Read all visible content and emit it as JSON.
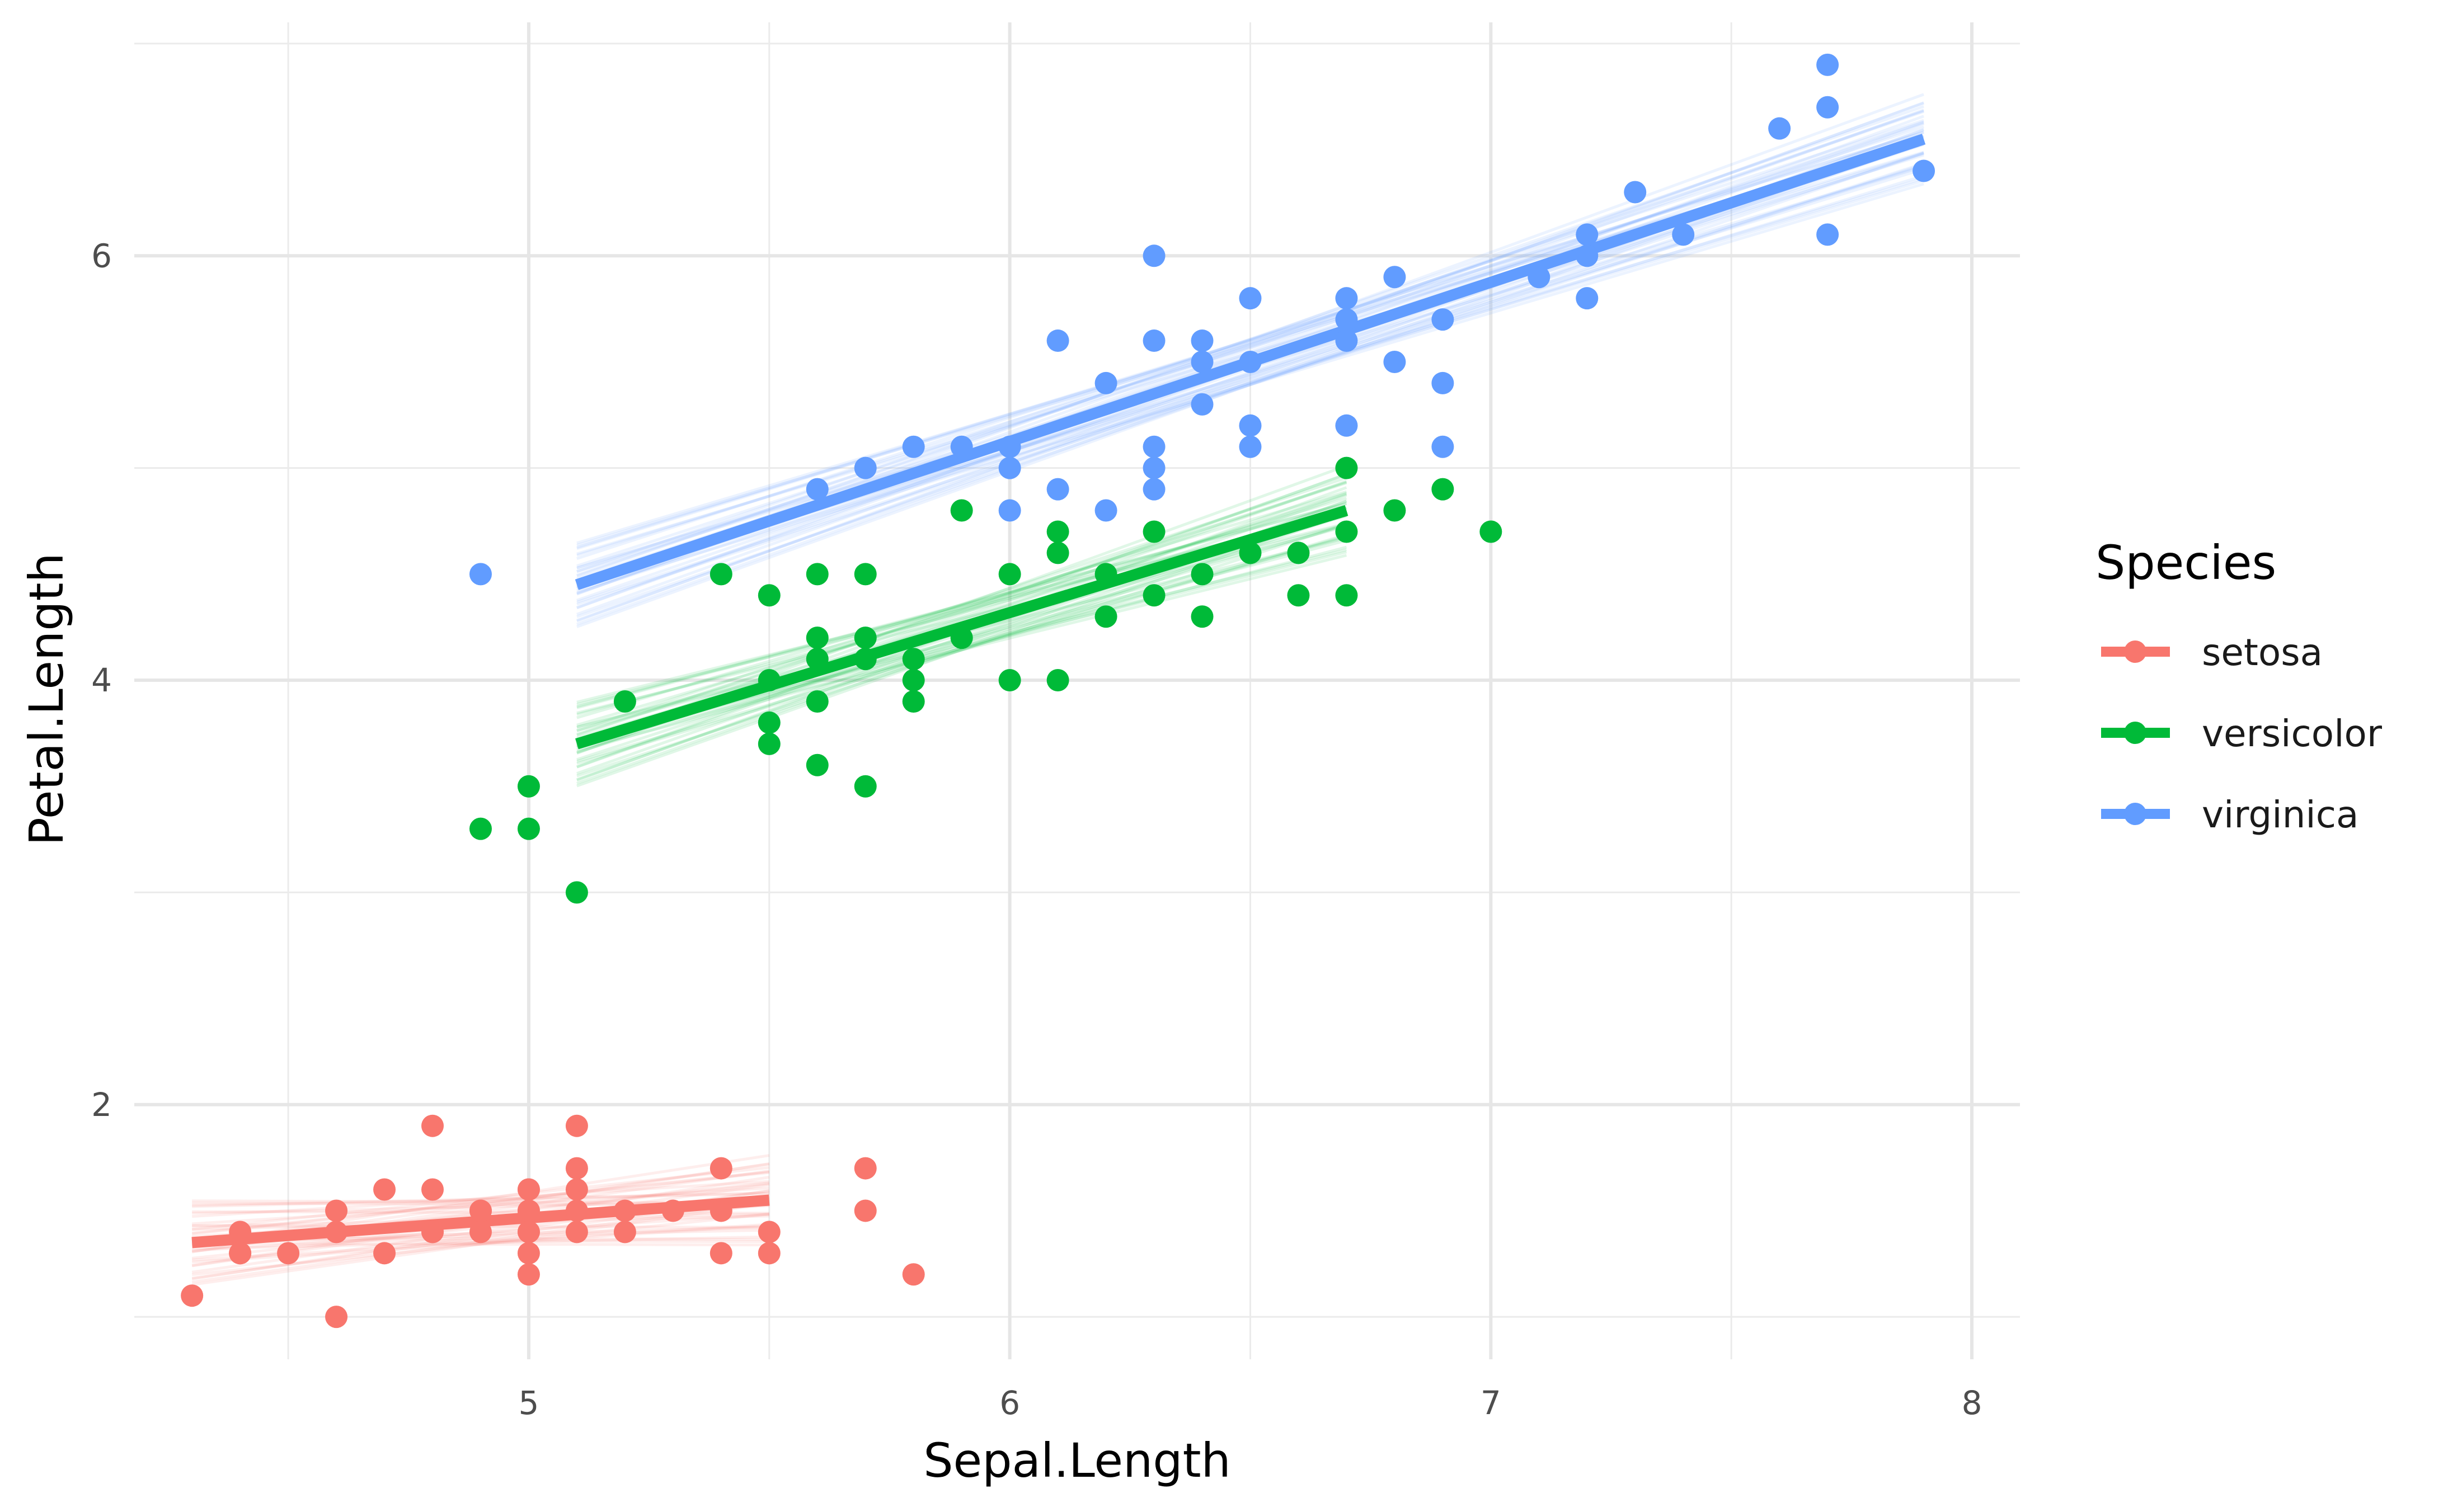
{
  "chart_data": {
    "type": "scatter",
    "xlabel": "Sepal.Length",
    "ylabel": "Petal.Length",
    "xlim": [
      4.18,
      8.1
    ],
    "ylim": [
      0.8,
      7.1
    ],
    "x_ticks": [
      5,
      6,
      7,
      8
    ],
    "x_minor_ticks": [
      4.5,
      5.5,
      6.5,
      7.5
    ],
    "y_ticks": [
      2,
      4,
      6
    ],
    "y_minor_ticks": [
      1,
      3,
      5,
      7
    ],
    "grid": true,
    "legend": {
      "title": "Species",
      "placement": "right"
    },
    "series": [
      {
        "name": "setosa",
        "color": "#F8766D",
        "fit": {
          "x": [
            4.3,
            5.5
          ],
          "y": [
            1.35,
            1.55
          ]
        },
        "points": [
          [
            4.3,
            1.1
          ],
          [
            4.4,
            1.4
          ],
          [
            4.4,
            1.3
          ],
          [
            4.4,
            1.3
          ],
          [
            4.5,
            1.3
          ],
          [
            4.6,
            1.4
          ],
          [
            4.6,
            1.5
          ],
          [
            4.6,
            1.0
          ],
          [
            4.6,
            1.4
          ],
          [
            4.7,
            1.6
          ],
          [
            4.7,
            1.3
          ],
          [
            4.8,
            1.9
          ],
          [
            4.8,
            1.6
          ],
          [
            4.8,
            1.4
          ],
          [
            4.8,
            1.4
          ],
          [
            4.9,
            1.4
          ],
          [
            4.9,
            1.5
          ],
          [
            4.9,
            1.5
          ],
          [
            5.0,
            1.6
          ],
          [
            5.0,
            1.4
          ],
          [
            5.0,
            1.5
          ],
          [
            5.0,
            1.3
          ],
          [
            5.0,
            1.2
          ],
          [
            5.0,
            1.6
          ],
          [
            5.0,
            1.4
          ],
          [
            5.0,
            1.5
          ],
          [
            5.1,
            1.9
          ],
          [
            5.1,
            1.7
          ],
          [
            5.1,
            1.6
          ],
          [
            5.1,
            1.5
          ],
          [
            5.1,
            1.4
          ],
          [
            5.2,
            1.5
          ],
          [
            5.2,
            1.4
          ],
          [
            5.3,
            1.5
          ],
          [
            5.4,
            1.7
          ],
          [
            5.4,
            1.5
          ],
          [
            5.4,
            1.3
          ],
          [
            5.5,
            1.4
          ],
          [
            5.5,
            1.3
          ],
          [
            5.7,
            1.7
          ],
          [
            5.7,
            1.5
          ],
          [
            5.8,
            1.2
          ]
        ]
      },
      {
        "name": "versicolor",
        "color": "#00BA38",
        "fit": {
          "x": [
            5.1,
            6.7
          ],
          "y": [
            3.7,
            4.8
          ]
        },
        "points": [
          [
            4.9,
            3.3
          ],
          [
            5.0,
            3.5
          ],
          [
            5.0,
            3.3
          ],
          [
            5.1,
            3.0
          ],
          [
            5.2,
            3.9
          ],
          [
            5.4,
            4.5
          ],
          [
            5.5,
            4.4
          ],
          [
            5.5,
            4.0
          ],
          [
            5.5,
            3.8
          ],
          [
            5.5,
            3.7
          ],
          [
            5.6,
            4.5
          ],
          [
            5.6,
            4.2
          ],
          [
            5.6,
            4.1
          ],
          [
            5.6,
            3.9
          ],
          [
            5.6,
            3.6
          ],
          [
            5.7,
            4.5
          ],
          [
            5.7,
            4.2
          ],
          [
            5.7,
            4.1
          ],
          [
            5.7,
            3.5
          ],
          [
            5.8,
            4.1
          ],
          [
            5.8,
            4.0
          ],
          [
            5.8,
            3.9
          ],
          [
            5.9,
            4.8
          ],
          [
            5.9,
            4.2
          ],
          [
            6.0,
            4.5
          ],
          [
            6.0,
            4.0
          ],
          [
            6.1,
            4.7
          ],
          [
            6.1,
            4.6
          ],
          [
            6.1,
            4.0
          ],
          [
            6.2,
            4.5
          ],
          [
            6.2,
            4.3
          ],
          [
            6.3,
            4.7
          ],
          [
            6.3,
            4.4
          ],
          [
            6.4,
            4.5
          ],
          [
            6.4,
            4.3
          ],
          [
            6.5,
            4.6
          ],
          [
            6.6,
            4.6
          ],
          [
            6.6,
            4.4
          ],
          [
            6.7,
            5.0
          ],
          [
            6.7,
            4.7
          ],
          [
            6.7,
            4.4
          ],
          [
            6.8,
            4.8
          ],
          [
            6.9,
            4.9
          ],
          [
            7.0,
            4.7
          ]
        ]
      },
      {
        "name": "virginica",
        "color": "#619CFF",
        "fit": {
          "x": [
            5.1,
            7.9
          ],
          "y": [
            4.45,
            6.55
          ]
        },
        "points": [
          [
            4.9,
            4.5
          ],
          [
            5.6,
            4.9
          ],
          [
            5.7,
            5.0
          ],
          [
            5.8,
            5.1
          ],
          [
            5.9,
            5.1
          ],
          [
            6.0,
            5.1
          ],
          [
            6.0,
            5.0
          ],
          [
            6.0,
            4.8
          ],
          [
            6.1,
            5.6
          ],
          [
            6.1,
            4.9
          ],
          [
            6.2,
            5.4
          ],
          [
            6.2,
            4.8
          ],
          [
            6.3,
            6.0
          ],
          [
            6.3,
            5.6
          ],
          [
            6.3,
            5.1
          ],
          [
            6.3,
            5.0
          ],
          [
            6.3,
            4.9
          ],
          [
            6.4,
            5.6
          ],
          [
            6.4,
            5.5
          ],
          [
            6.4,
            5.3
          ],
          [
            6.5,
            5.8
          ],
          [
            6.5,
            5.5
          ],
          [
            6.5,
            5.2
          ],
          [
            6.5,
            5.1
          ],
          [
            6.7,
            5.8
          ],
          [
            6.7,
            5.7
          ],
          [
            6.7,
            5.6
          ],
          [
            6.7,
            5.2
          ],
          [
            6.8,
            5.9
          ],
          [
            6.8,
            5.5
          ],
          [
            6.9,
            5.7
          ],
          [
            6.9,
            5.4
          ],
          [
            6.9,
            5.1
          ],
          [
            7.1,
            5.9
          ],
          [
            7.2,
            6.1
          ],
          [
            7.2,
            6.0
          ],
          [
            7.2,
            5.8
          ],
          [
            7.3,
            6.3
          ],
          [
            7.4,
            6.1
          ],
          [
            7.6,
            6.6
          ],
          [
            7.7,
            6.9
          ],
          [
            7.7,
            6.7
          ],
          [
            7.7,
            6.1
          ],
          [
            7.9,
            6.4
          ]
        ]
      }
    ]
  }
}
